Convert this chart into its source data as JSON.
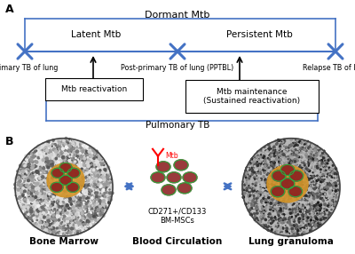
{
  "panel_A_label": "A",
  "panel_B_label": "B",
  "dormant_mtb_label": "Dormant Mtb",
  "pulmonary_tb_label": "Pulmonary TB",
  "latent_mtb_label": "Latent Mtb",
  "persistent_mtb_label": "Persistent Mtb",
  "primary_tb_label": "Primary TB of lung",
  "postprimary_tb_label": "Post-primary TB of lung (PPTBL)",
  "relapse_tb_label": "Relapse TB of lung",
  "reactivation_label": "Mtb reactivation",
  "maintenance_label": "Mtb maintenance\n(Sustained reactivation)",
  "bone_marrow_label": "Bone Marrow",
  "blood_circ_label": "Blood Circulation",
  "lung_gran_label": "Lung granuloma",
  "cd271_label": "CD271+/CD133\nBM-MSCs",
  "mtb_label": "Mtb",
  "line_color": "#4472C4",
  "cross_color": "#4472C4",
  "bg_color": "#ffffff",
  "text_color": "#000000"
}
